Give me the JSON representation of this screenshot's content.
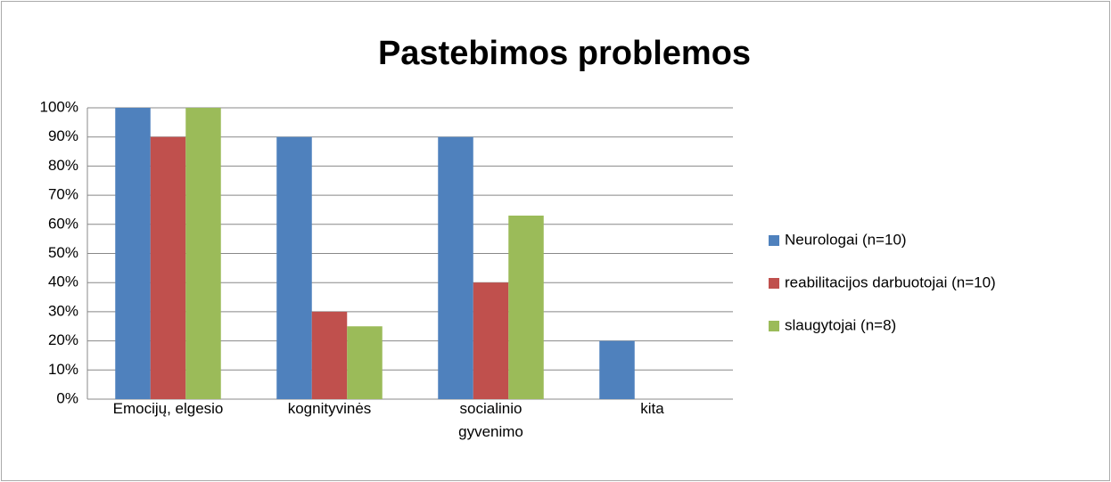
{
  "chart_data": {
    "type": "bar",
    "title": "Pastebimos problemos",
    "categories": [
      "Emocijų, elgesio",
      "kognityvinės",
      "socialinio gyvenimo",
      "kita"
    ],
    "series": [
      {
        "name": "Neurologai (n=10)",
        "color": "#4f81bd",
        "values": [
          100,
          90,
          90,
          20
        ]
      },
      {
        "name": "reabilitacijos darbuotojai (n=10)",
        "color": "#c0504d",
        "values": [
          90,
          30,
          40,
          0
        ]
      },
      {
        "name": "slaugytojai (n=8)",
        "color": "#9bbb59",
        "values": [
          100,
          25,
          63,
          0
        ]
      }
    ],
    "ylim": [
      0,
      100
    ],
    "yticks": [
      {
        "value": 0,
        "label": "0%"
      },
      {
        "value": 10,
        "label": "10%"
      },
      {
        "value": 20,
        "label": "20%"
      },
      {
        "value": 30,
        "label": "30%"
      },
      {
        "value": 40,
        "label": "40%"
      },
      {
        "value": 50,
        "label": "50%"
      },
      {
        "value": 60,
        "label": "60%"
      },
      {
        "value": 70,
        "label": "70%"
      },
      {
        "value": 80,
        "label": "80%"
      },
      {
        "value": 90,
        "label": "90%"
      },
      {
        "value": 100,
        "label": "100%"
      }
    ],
    "grid": true,
    "legend": "right"
  }
}
